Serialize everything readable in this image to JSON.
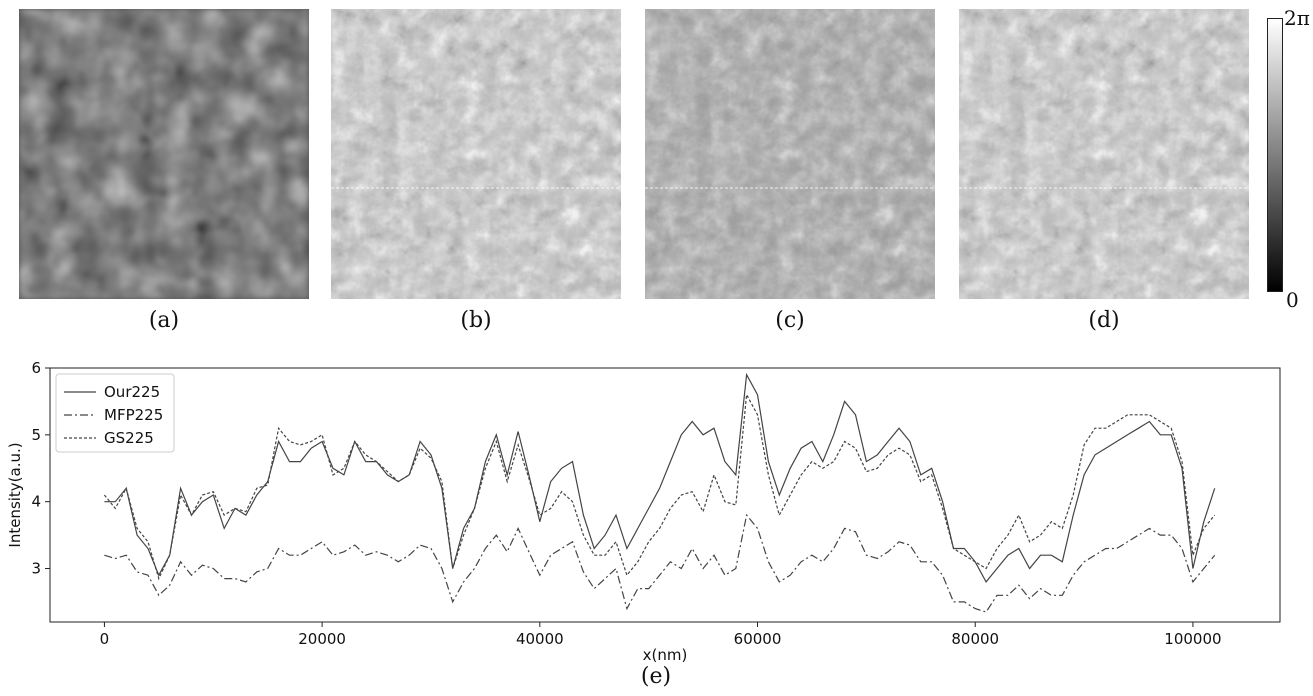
{
  "panels": [
    {
      "caption": "(a)",
      "style": "blurred"
    },
    {
      "caption": "(b)",
      "style": "sharp"
    },
    {
      "caption": "(c)",
      "style": "low-contrast"
    },
    {
      "caption": "(d)",
      "style": "sharp"
    }
  ],
  "colorbar": {
    "max_label": "2π",
    "min_label": "0"
  },
  "figure_caption": "(e)",
  "colors": {
    "line": "#444444",
    "axes": "#222222"
  },
  "chart_data": {
    "type": "line",
    "xlabel": "x(nm)",
    "ylabel": "Intensity(a.u.)",
    "xlim": [
      -5000,
      108000
    ],
    "ylim": [
      2.2,
      6.0
    ],
    "xticks": [
      0,
      20000,
      40000,
      60000,
      80000,
      100000
    ],
    "yticks": [
      3,
      4,
      5,
      6
    ],
    "legend_position": "top-left",
    "grid": false,
    "x": [
      0,
      1000,
      2000,
      3000,
      4000,
      5000,
      6000,
      7000,
      8000,
      9000,
      10000,
      11000,
      12000,
      13000,
      14000,
      15000,
      16000,
      17000,
      18000,
      19000,
      20000,
      21000,
      22000,
      23000,
      24000,
      25000,
      26000,
      27000,
      28000,
      29000,
      30000,
      31000,
      32000,
      33000,
      34000,
      35000,
      36000,
      37000,
      38000,
      39000,
      40000,
      41000,
      42000,
      43000,
      44000,
      45000,
      46000,
      47000,
      48000,
      49000,
      50000,
      51000,
      52000,
      53000,
      54000,
      55000,
      56000,
      57000,
      58000,
      59000,
      60000,
      61000,
      62000,
      63000,
      64000,
      65000,
      66000,
      67000,
      68000,
      69000,
      70000,
      71000,
      72000,
      73000,
      74000,
      75000,
      76000,
      77000,
      78000,
      79000,
      80000,
      81000,
      82000,
      83000,
      84000,
      85000,
      86000,
      87000,
      88000,
      89000,
      90000,
      91000,
      92000,
      93000,
      94000,
      95000,
      96000,
      97000,
      98000,
      99000,
      100000,
      101000,
      102000
    ],
    "series": [
      {
        "name": "Our225",
        "dash": "solid",
        "values": [
          4.0,
          4.0,
          4.2,
          3.5,
          3.3,
          2.9,
          3.2,
          4.2,
          3.8,
          4.0,
          4.1,
          3.6,
          3.9,
          3.8,
          4.1,
          4.3,
          4.9,
          4.6,
          4.6,
          4.8,
          4.9,
          4.5,
          4.4,
          4.9,
          4.6,
          4.6,
          4.4,
          4.3,
          4.4,
          4.9,
          4.7,
          4.2,
          3.0,
          3.6,
          3.9,
          4.6,
          5.0,
          4.4,
          5.05,
          4.4,
          3.7,
          4.3,
          4.5,
          4.6,
          3.8,
          3.3,
          3.5,
          3.8,
          3.3,
          3.6,
          3.9,
          4.2,
          4.6,
          5.0,
          5.2,
          5.0,
          5.1,
          4.6,
          4.4,
          5.9,
          5.6,
          4.6,
          4.1,
          4.5,
          4.8,
          4.9,
          4.6,
          5.0,
          5.5,
          5.3,
          4.6,
          4.7,
          4.9,
          5.1,
          4.9,
          4.4,
          4.5,
          4.0,
          3.3,
          3.3,
          3.1,
          2.8,
          3.0,
          3.2,
          3.3,
          3.0,
          3.2,
          3.2,
          3.1,
          3.8,
          4.4,
          4.7,
          4.8,
          4.9,
          5.0,
          5.1,
          5.2,
          5.0,
          5.0,
          4.5,
          3.0,
          3.7,
          4.2
        ]
      },
      {
        "name": "MFP225",
        "dash": "dashdot",
        "values": [
          3.2,
          3.15,
          3.2,
          2.95,
          2.9,
          2.6,
          2.75,
          3.1,
          2.9,
          3.05,
          3.0,
          2.85,
          2.85,
          2.8,
          2.95,
          3.0,
          3.3,
          3.2,
          3.2,
          3.3,
          3.4,
          3.2,
          3.25,
          3.35,
          3.2,
          3.25,
          3.2,
          3.1,
          3.2,
          3.35,
          3.3,
          3.0,
          2.5,
          2.8,
          3.0,
          3.3,
          3.5,
          3.25,
          3.6,
          3.25,
          2.9,
          3.2,
          3.3,
          3.4,
          2.95,
          2.7,
          2.85,
          3.0,
          2.4,
          2.7,
          2.7,
          2.9,
          3.1,
          3.0,
          3.3,
          3.0,
          3.2,
          2.9,
          3.0,
          3.8,
          3.6,
          3.1,
          2.8,
          2.9,
          3.1,
          3.2,
          3.1,
          3.3,
          3.6,
          3.55,
          3.2,
          3.15,
          3.25,
          3.4,
          3.35,
          3.1,
          3.1,
          2.9,
          2.5,
          2.5,
          2.4,
          2.35,
          2.6,
          2.6,
          2.75,
          2.55,
          2.7,
          2.6,
          2.6,
          2.9,
          3.1,
          3.2,
          3.3,
          3.3,
          3.4,
          3.5,
          3.6,
          3.5,
          3.5,
          3.3,
          2.8,
          3.0,
          3.2
        ]
      },
      {
        "name": "GS225",
        "dash": "dotted",
        "values": [
          4.1,
          3.9,
          4.2,
          3.6,
          3.4,
          2.85,
          3.2,
          4.1,
          3.8,
          4.1,
          4.15,
          3.8,
          3.9,
          3.85,
          4.2,
          4.25,
          5.1,
          4.9,
          4.85,
          4.9,
          5.0,
          4.4,
          4.5,
          4.9,
          4.7,
          4.6,
          4.45,
          4.3,
          4.4,
          4.8,
          4.65,
          4.3,
          3.0,
          3.5,
          3.9,
          4.5,
          4.9,
          4.3,
          4.85,
          4.35,
          3.8,
          3.9,
          4.15,
          4.0,
          3.5,
          3.2,
          3.2,
          3.4,
          2.9,
          3.1,
          3.4,
          3.6,
          3.9,
          4.1,
          4.15,
          3.85,
          4.4,
          4.0,
          3.95,
          5.6,
          5.3,
          4.4,
          3.8,
          4.1,
          4.4,
          4.6,
          4.5,
          4.6,
          4.9,
          4.8,
          4.45,
          4.5,
          4.7,
          4.8,
          4.7,
          4.3,
          4.4,
          3.9,
          3.3,
          3.2,
          3.1,
          3.0,
          3.3,
          3.5,
          3.8,
          3.4,
          3.5,
          3.7,
          3.6,
          4.1,
          4.85,
          5.1,
          5.1,
          5.2,
          5.3,
          5.3,
          5.3,
          5.2,
          5.1,
          4.6,
          3.2,
          3.6,
          3.8
        ]
      }
    ]
  }
}
